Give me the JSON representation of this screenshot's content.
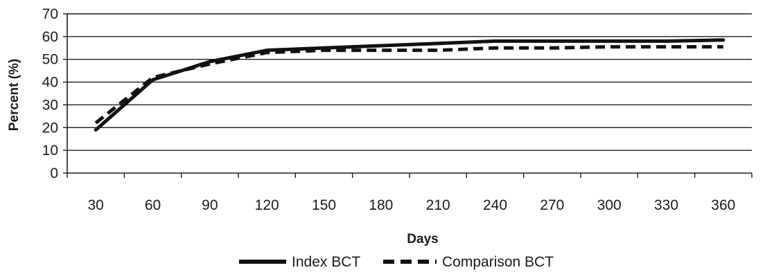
{
  "chart_data": {
    "type": "line",
    "title": "",
    "xlabel": "Days",
    "ylabel": "Percent (%)",
    "x": [
      30,
      60,
      90,
      120,
      150,
      180,
      210,
      240,
      270,
      300,
      330,
      360
    ],
    "x_tick_labels": [
      "30",
      "60",
      "90",
      "120",
      "150",
      "180",
      "210",
      "240",
      "270",
      "300",
      "330",
      "360"
    ],
    "y_tick_labels": [
      "0",
      "10",
      "20",
      "30",
      "40",
      "50",
      "60",
      "70"
    ],
    "ylim": [
      0,
      70
    ],
    "grid": "horizontal",
    "legend_position": "bottom",
    "series": [
      {
        "name": "Index BCT",
        "style": "solid",
        "color": "#111111",
        "values": [
          19,
          41,
          49,
          54,
          55,
          56,
          57,
          58,
          58,
          58,
          58,
          58.5
        ]
      },
      {
        "name": "Comparison BCT",
        "style": "dashed",
        "color": "#111111",
        "values": [
          22,
          42,
          48,
          53,
          54,
          54,
          54,
          55,
          55,
          55.5,
          55.5,
          55.5
        ]
      }
    ]
  }
}
